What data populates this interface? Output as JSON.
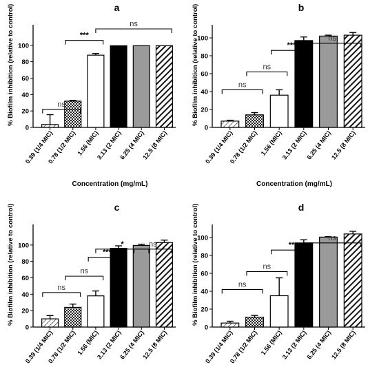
{
  "chart_data": [
    {
      "type": "bar",
      "panel_label": "a",
      "categories": [
        "0.39 (1/4 MIC)",
        "0.78 (1/2 MIC)",
        "1.56 (MIC)",
        "3.13 (2 MIC)",
        "6.25 (4 MIC)",
        "12.5 (8 MIC)"
      ],
      "values": [
        3.5,
        32,
        88,
        99.5,
        99.5,
        99.5
      ],
      "errors": [
        12,
        1,
        2,
        0,
        0,
        0
      ],
      "ylabel": "% Biofilm inhibition (relative to control)",
      "xlabel": "Concentration (mg/mL)",
      "ylim": [
        0,
        120
      ],
      "yticks": [
        "0",
        "20",
        "40",
        "60",
        "80",
        "100"
      ],
      "annotations": [
        {
          "text": "ns",
          "from": 0,
          "to": 1
        },
        {
          "text": "***",
          "from": 1,
          "to": 2
        },
        {
          "text": "ns",
          "from": 2,
          "to": 5
        }
      ]
    },
    {
      "type": "bar",
      "panel_label": "b",
      "categories": [
        "0.39 (1/4 MIC)",
        "0.78 (1/2 MIC)",
        "1.56 (MIC)",
        "3.13 (2 MIC)",
        "6.25 (4 MIC)",
        "12.5 (8 MIC)"
      ],
      "values": [
        7,
        14,
        36,
        97,
        102,
        103
      ],
      "errors": [
        1,
        2.5,
        6,
        4,
        1,
        3
      ],
      "ylabel": "% Biofilm inhibition (relative to control)",
      "xlabel": "Concentration (mg/mL)",
      "ylim": [
        0,
        110
      ],
      "yticks": [
        "0",
        "20",
        "40",
        "60",
        "80",
        "100"
      ],
      "annotations": [
        {
          "text": "ns",
          "from": 0,
          "to": 1
        },
        {
          "text": "ns",
          "from": 1,
          "to": 2
        },
        {
          "text": "***",
          "from": 2,
          "to": 3
        },
        {
          "text": "ns",
          "from": 3,
          "to": 5
        }
      ]
    },
    {
      "type": "bar",
      "panel_label": "c",
      "categories": [
        "0.39 (1/4 MIC)",
        "0.78 (1/2 MIC)",
        "1.56 (MIC)",
        "3.13 (2 MIC)",
        "6.25 (4 MIC)",
        "12.5 (8 MIC)"
      ],
      "values": [
        10,
        24,
        38,
        96,
        99.5,
        103
      ],
      "errors": [
        4,
        4,
        6,
        3,
        1.5,
        3
      ],
      "ylabel": "% Biofilm inhibition (relative to control)",
      "xlabel": "Concentration (mg/mL)",
      "ylim": [
        0,
        120
      ],
      "yticks": [
        "0",
        "20",
        "40",
        "60",
        "80",
        "100"
      ],
      "annotations": [
        {
          "text": "ns",
          "from": 0,
          "to": 1
        },
        {
          "text": "ns",
          "from": 1,
          "to": 2
        },
        {
          "text": "***",
          "from": 2,
          "to": 3
        },
        {
          "text": "*",
          "from": 2,
          "to": 4
        },
        {
          "text": "ns",
          "from": 4,
          "to": 5
        }
      ]
    },
    {
      "type": "bar",
      "panel_label": "d",
      "categories": [
        "0.39 (1/4 MIC)",
        "0.78 (1/2 MIC)",
        "1.56 (MIC)",
        "3.13 (2 MIC)",
        "6.25 (4 MIC)",
        "12.5 (8 MIC)"
      ],
      "values": [
        4.5,
        11,
        35,
        94,
        100.5,
        104
      ],
      "errors": [
        2,
        2,
        20,
        3.5,
        0.5,
        3
      ],
      "ylabel": "% Biofilm inhibition (relative to control)",
      "xlabel": "Concentration (mg/mL)",
      "ylim": [
        0,
        110
      ],
      "yticks": [
        "0",
        "20",
        "40",
        "60",
        "80",
        "100"
      ],
      "annotations": [
        {
          "text": "ns",
          "from": 0,
          "to": 1
        },
        {
          "text": "ns",
          "from": 1,
          "to": 2
        },
        {
          "text": "**",
          "from": 2,
          "to": 3
        },
        {
          "text": "ns",
          "from": 3,
          "to": 5
        }
      ]
    }
  ]
}
